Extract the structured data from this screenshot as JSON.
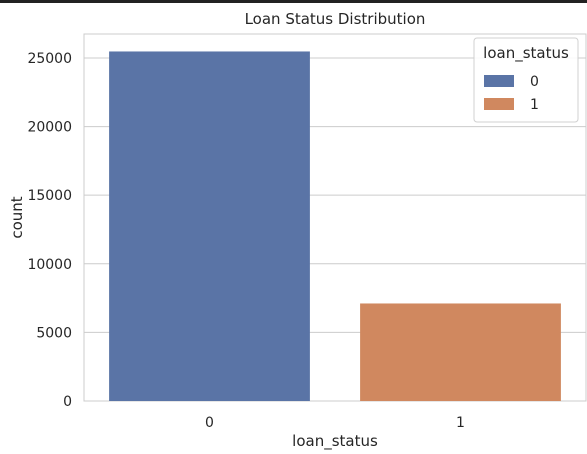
{
  "chart_data": {
    "type": "bar",
    "title": "Loan Status Distribution",
    "xlabel": "loan_status",
    "ylabel": "count",
    "categories": [
      "0",
      "1"
    ],
    "values": [
      25473,
      7108
    ],
    "ylim": [
      0,
      26746
    ],
    "yticks": [
      0,
      5000,
      10000,
      15000,
      20000,
      25000
    ],
    "ytick_labels": [
      "0",
      "5000",
      "10000",
      "15000",
      "20000",
      "25000"
    ],
    "grid": true,
    "legend": {
      "title": "loan_status",
      "placement": "top-right",
      "entries": [
        "0",
        "1"
      ]
    },
    "colors": [
      "#5a74a6",
      "#d0885f"
    ]
  }
}
